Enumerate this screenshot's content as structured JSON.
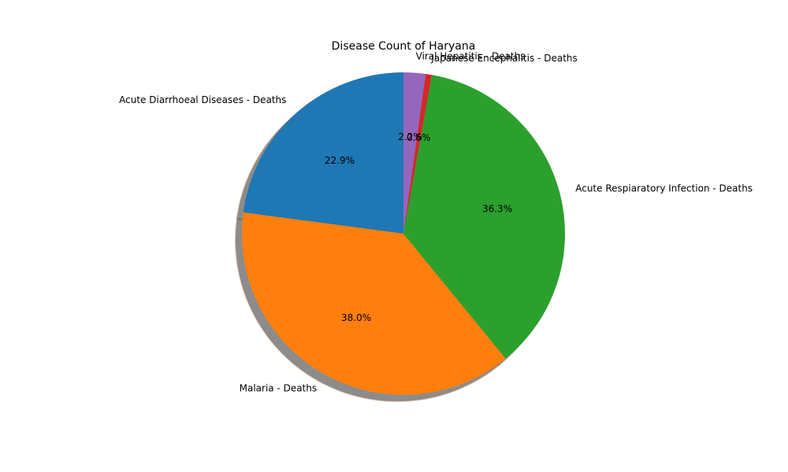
{
  "chart_data": {
    "type": "pie",
    "title": "Disease Count of Haryana",
    "start_angle_deg": 90,
    "direction": "counterclockwise",
    "shadow": true,
    "autopct_format": "%1.1f%%",
    "slices": [
      {
        "label": "Acute Diarrhoeal Diseases - Deaths",
        "value": 22.9,
        "pct_label": "22.9%",
        "color": "#1f77b4"
      },
      {
        "label": "Malaria - Deaths",
        "value": 38.0,
        "pct_label": "38.0%",
        "color": "#ff7f0e"
      },
      {
        "label": "Acute Respiaratory Infection - Deaths",
        "value": 36.3,
        "pct_label": "36.3%",
        "color": "#2ca02c"
      },
      {
        "label": "Japanese Encephalitis - Deaths",
        "value": 0.6,
        "pct_label": "0.6%",
        "color": "#d62728"
      },
      {
        "label": "Viral Hepatitis - Deaths",
        "value": 2.2,
        "pct_label": "2.2%",
        "color": "#9467bd"
      }
    ]
  }
}
